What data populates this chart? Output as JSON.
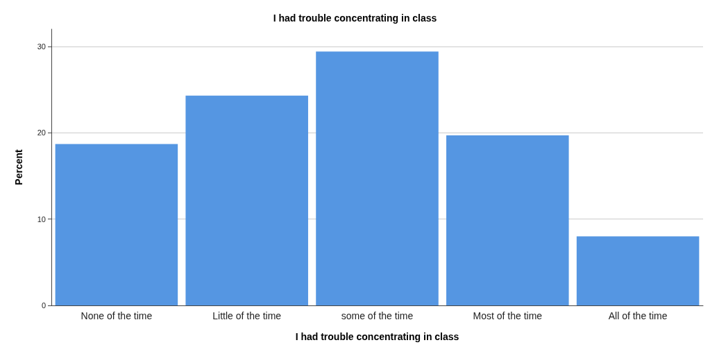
{
  "chart_data": {
    "type": "bar",
    "title": "I had trouble concentrating in class",
    "xlabel": "I had trouble concentrating in class",
    "ylabel": "Percent",
    "categories": [
      "None of the time",
      "Little of the time",
      "some of the time",
      "Most of the time",
      "All of the time"
    ],
    "values": [
      18.7,
      24.3,
      29.4,
      19.7,
      8.0
    ],
    "color": "#5596e2",
    "ylim": [
      0,
      32
    ],
    "yticks": [
      0,
      10,
      20,
      30
    ],
    "grid": "y"
  }
}
